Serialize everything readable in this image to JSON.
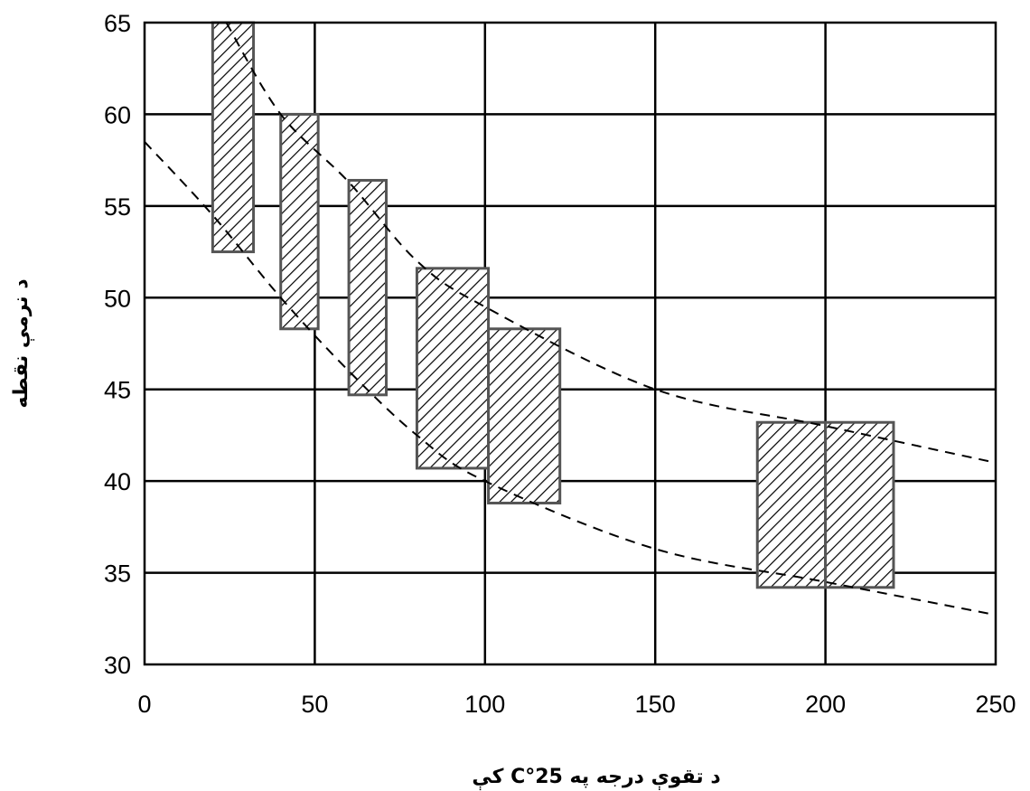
{
  "chart_data": {
    "type": "range-bar",
    "title": "",
    "xlabel": "د تقوې درجه په 25°C کې",
    "ylabel": "د نرمې نقطه",
    "xlim": [
      0,
      250
    ],
    "ylim": [
      30,
      65
    ],
    "x_ticks": [
      "0",
      "50",
      "100",
      "150",
      "200",
      "250"
    ],
    "y_ticks": [
      "30",
      "35",
      "40",
      "45",
      "50",
      "55",
      "60",
      "65"
    ],
    "x_tick_values": [
      0,
      50,
      100,
      150,
      200,
      250
    ],
    "y_tick_values": [
      30,
      35,
      40,
      45,
      50,
      55,
      60,
      65
    ],
    "grid": true,
    "ranges": [
      {
        "x_min": 20,
        "x_max": 32,
        "y_min": 52.5,
        "y_max": 65
      },
      {
        "x_min": 40,
        "x_max": 51,
        "y_min": 48.3,
        "y_max": 60
      },
      {
        "x_min": 60,
        "x_max": 71,
        "y_min": 44.7,
        "y_max": 56.4
      },
      {
        "x_min": 80,
        "x_max": 101,
        "y_min": 40.7,
        "y_max": 51.6
      },
      {
        "x_min": 101,
        "x_max": 122,
        "y_min": 38.8,
        "y_max": 48.3
      },
      {
        "x_min": 180,
        "x_max": 200,
        "y_min": 34.2,
        "y_max": 43.2
      },
      {
        "x_min": 200,
        "x_max": 220,
        "y_min": 34.2,
        "y_max": 43.2
      }
    ],
    "trend_lines": [
      {
        "points": [
          [
            24,
            65
          ],
          [
            40,
            60
          ],
          [
            60,
            56.3
          ],
          [
            80,
            52
          ],
          [
            100,
            49.5
          ],
          [
            150,
            45
          ],
          [
            200,
            43
          ],
          [
            250,
            41
          ]
        ]
      },
      {
        "points": [
          [
            0,
            58.5
          ],
          [
            20,
            54.5
          ],
          [
            40,
            50
          ],
          [
            60,
            46
          ],
          [
            80,
            42.5
          ],
          [
            100,
            40
          ],
          [
            150,
            36.3
          ],
          [
            200,
            34.5
          ],
          [
            250,
            32.7
          ]
        ]
      }
    ],
    "colors": {
      "hatch": "#000000",
      "box_border": "#555555",
      "grid": "#000000"
    }
  }
}
